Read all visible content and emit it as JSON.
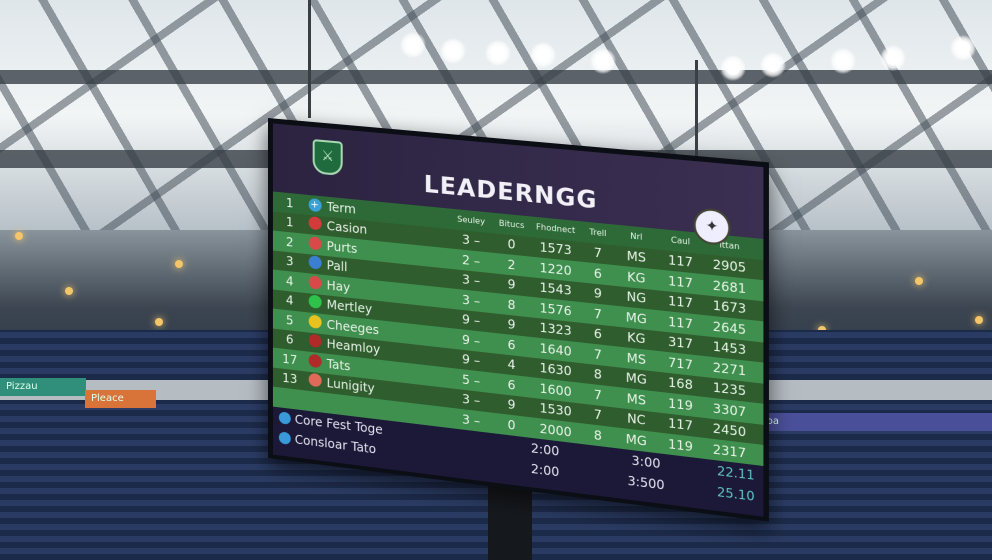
{
  "board": {
    "title": "LEADERNGG",
    "header": [
      "1",
      "Term",
      "Seuley",
      "Bitucs",
      "Fhodnect",
      "Trell",
      "Nrl",
      "Caul",
      "Ittan"
    ],
    "rows": [
      {
        "pos": "1",
        "team": "Casion",
        "a": "3 –",
        "b": "0",
        "c": "1573",
        "d": "7",
        "e": "MS",
        "f": "117",
        "g": "2905",
        "color": "#d33a3a"
      },
      {
        "pos": "2",
        "team": "Purts",
        "a": "2 –",
        "b": "2",
        "c": "1220",
        "d": "6",
        "e": "KG",
        "f": "117",
        "g": "2681",
        "color": "#d84a4a"
      },
      {
        "pos": "3",
        "team": "Pall",
        "a": "3 –",
        "b": "9",
        "c": "1543",
        "d": "9",
        "e": "NG",
        "f": "117",
        "g": "1673",
        "color": "#3a7fd0"
      },
      {
        "pos": "4",
        "team": "Hay",
        "a": "3 –",
        "b": "8",
        "c": "1576",
        "d": "7",
        "e": "MG",
        "f": "117",
        "g": "2645",
        "color": "#d84a4a"
      },
      {
        "pos": "4",
        "team": "Mertley",
        "a": "9 –",
        "b": "9",
        "c": "1323",
        "d": "6",
        "e": "KG",
        "f": "317",
        "g": "1453",
        "color": "#2fc24a"
      },
      {
        "pos": "5",
        "team": "Cheeges",
        "a": "9 –",
        "b": "6",
        "c": "1640",
        "d": "7",
        "e": "MS",
        "f": "717",
        "g": "2271",
        "color": "#e8c21e"
      },
      {
        "pos": "6",
        "team": "Heamloy",
        "a": "9 –",
        "b": "4",
        "c": "1630",
        "d": "8",
        "e": "MG",
        "f": "168",
        "g": "1235",
        "color": "#b02a2a"
      },
      {
        "pos": "17",
        "team": "Tats",
        "a": "5 –",
        "b": "6",
        "c": "1600",
        "d": "7",
        "e": "MS",
        "f": "119",
        "g": "3307",
        "color": "#b02a2a"
      },
      {
        "pos": "13",
        "team": "Lunigity",
        "a": "3 –",
        "b": "9",
        "c": "1530",
        "d": "7",
        "e": "NC",
        "f": "117",
        "g": "2450",
        "color": "#e06a5a"
      },
      {
        "pos": "",
        "team": "",
        "a": "3 –",
        "b": "0",
        "c": "2000",
        "d": "8",
        "e": "MG",
        "f": "119",
        "g": "2317",
        "color": ""
      }
    ],
    "footer": [
      {
        "name": "Core Fest Toge",
        "time": "2:00",
        "score": "3:00",
        "value": "22.11"
      },
      {
        "name": "Consloar Tato",
        "time": "2:00",
        "score": "3:500",
        "value": "25.10"
      }
    ]
  },
  "ads": [
    "Pizzau",
    "Pleace",
    "Ploa"
  ]
}
